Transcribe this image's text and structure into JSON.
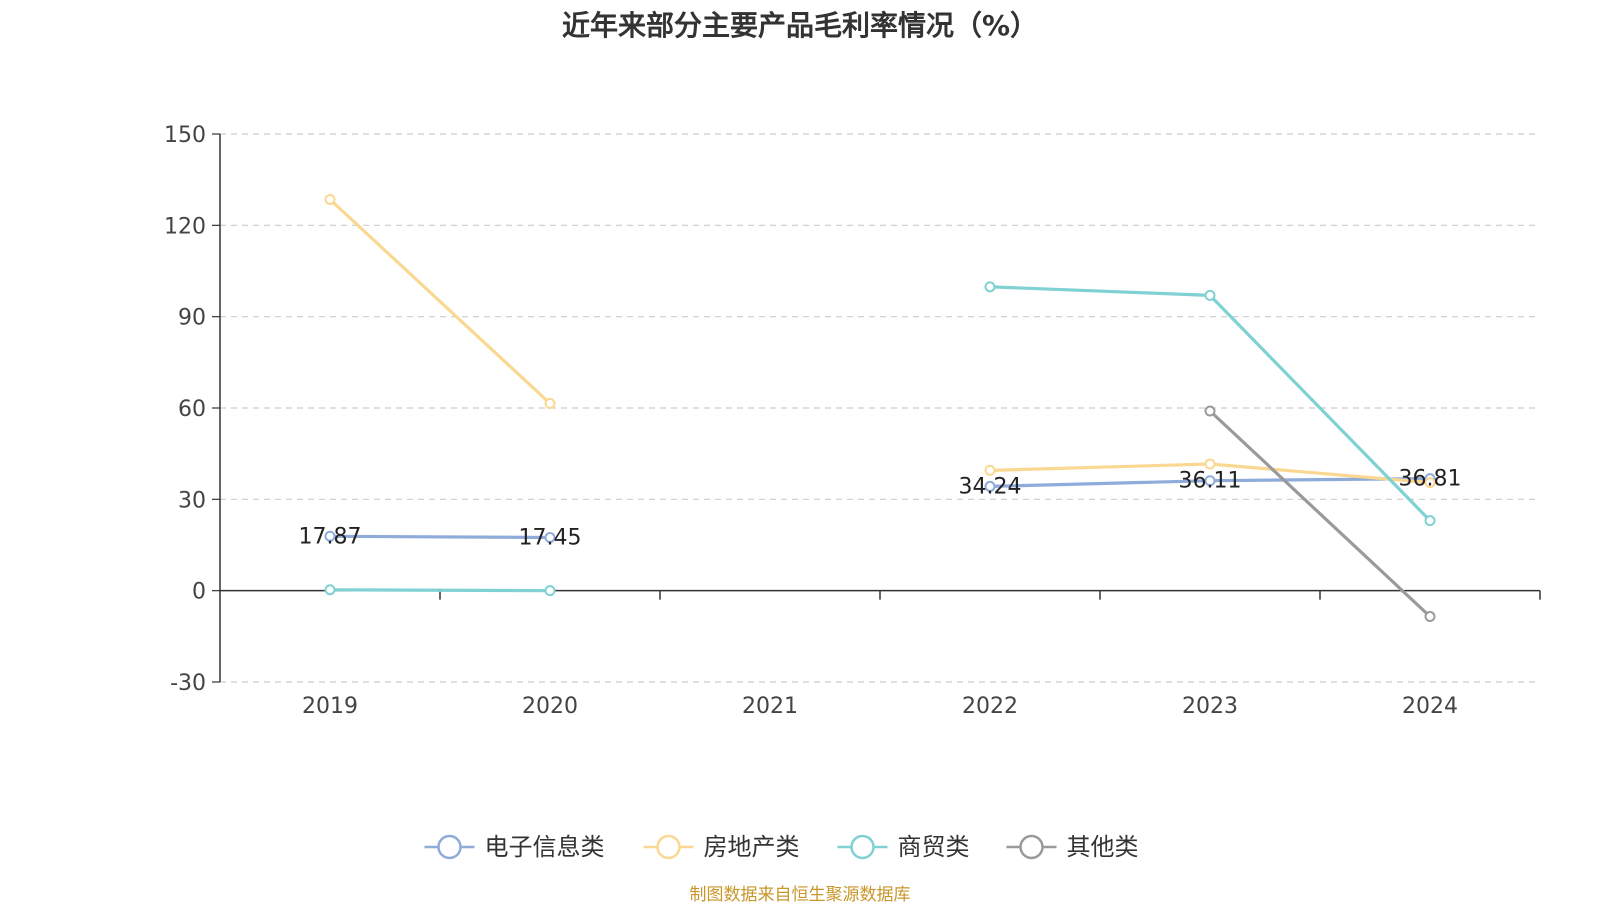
{
  "chart_data": {
    "type": "line",
    "title": "近年来部分主要产品毛利率情况（%）",
    "categories": [
      "2019",
      "2020",
      "2021",
      "2022",
      "2023",
      "2024"
    ],
    "ylim": [
      -30,
      150
    ],
    "yticks": [
      -30,
      0,
      30,
      60,
      90,
      120,
      150
    ],
    "grid": true,
    "legend_position": "bottom",
    "series": [
      {
        "name": "电子信息类",
        "color": "#8fabd9",
        "values": [
          17.87,
          17.45,
          null,
          34.24,
          36.11,
          36.81
        ],
        "labels": [
          "17.87",
          "17.45",
          null,
          "34.24",
          "36.11",
          "36.81"
        ]
      },
      {
        "name": "房地产类",
        "color": "#fad892",
        "values": [
          128.5,
          61.5,
          null,
          39.5,
          41.6,
          35.5
        ],
        "labels": [
          null,
          null,
          null,
          null,
          null,
          null
        ]
      },
      {
        "name": "商贸类",
        "color": "#7fd1d3",
        "values": [
          0.3,
          0.0,
          null,
          99.8,
          97.0,
          23.0
        ],
        "labels": [
          null,
          null,
          null,
          null,
          null,
          null
        ]
      },
      {
        "name": "其他类",
        "color": "#9a9a9a",
        "values": [
          null,
          null,
          null,
          null,
          59.0,
          -8.5
        ],
        "labels": [
          null,
          null,
          null,
          null,
          null,
          null
        ]
      }
    ]
  },
  "source_note": "制图数据来自恒生聚源数据库"
}
